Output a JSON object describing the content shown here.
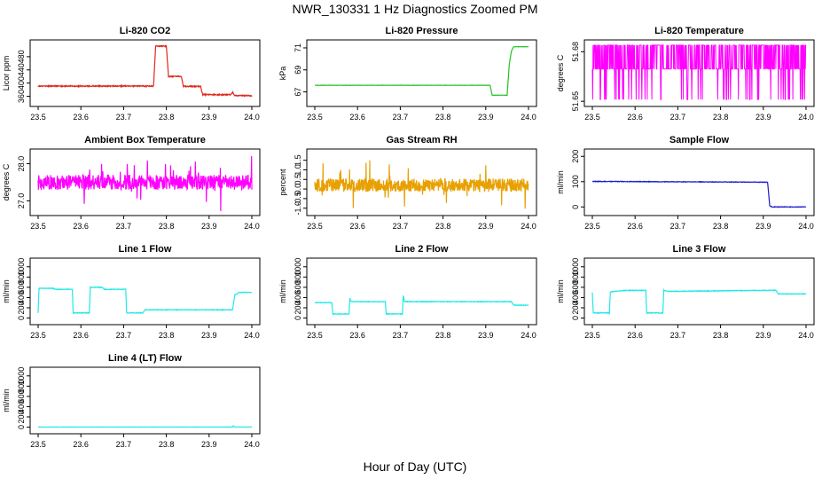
{
  "page": {
    "title": "NWR_130331  1 Hz Diagnostics Zoomed PM",
    "x_axis_title": "Hour of Day (UTC)"
  },
  "chart_data": [
    {
      "type": "line",
      "title": "Li-820 CO2",
      "ylabel": "Licor ppm",
      "color": "#e0281c",
      "xlim": [
        23.5,
        24.0
      ],
      "ylim": [
        340,
        520
      ],
      "xticks": [
        "23.5",
        "23.6",
        "23.7",
        "23.8",
        "23.9",
        "24.0"
      ],
      "yticks": [
        360,
        400,
        440,
        480
      ],
      "noise": 1.5,
      "spike_chance": 0,
      "points": [
        [
          23.5,
          391
        ],
        [
          23.77,
          391
        ],
        [
          23.775,
          512
        ],
        [
          23.8,
          512
        ],
        [
          23.805,
          420
        ],
        [
          23.835,
          420
        ],
        [
          23.84,
          390
        ],
        [
          23.88,
          390
        ],
        [
          23.885,
          365
        ],
        [
          23.95,
          365
        ],
        [
          23.955,
          372
        ],
        [
          23.96,
          362
        ],
        [
          24.0,
          362
        ]
      ]
    },
    {
      "type": "line",
      "title": "Li-820 Pressure",
      "ylabel": "kPa",
      "color": "#22c022",
      "xlim": [
        23.5,
        24.0
      ],
      "ylim": [
        66.0,
        71.4
      ],
      "xticks": [
        "23.5",
        "23.6",
        "23.7",
        "23.8",
        "23.9",
        "24.0"
      ],
      "yticks": [
        67,
        69,
        71
      ],
      "noise": 0.01,
      "spike_chance": 0,
      "points": [
        [
          23.5,
          67.6
        ],
        [
          23.91,
          67.6
        ],
        [
          23.915,
          66.7
        ],
        [
          23.95,
          66.7
        ],
        [
          23.955,
          69.5
        ],
        [
          23.96,
          70.7
        ],
        [
          23.965,
          71.1
        ],
        [
          24.0,
          71.1
        ]
      ]
    },
    {
      "type": "line",
      "title": "Li-820 Temperature",
      "ylabel": "degrees C",
      "color": "#ff00ff",
      "xlim": [
        23.5,
        24.0
      ],
      "ylim": [
        51.649,
        51.685
      ],
      "xticks": [
        "23.5",
        "23.6",
        "23.7",
        "23.8",
        "23.9",
        "24.0"
      ],
      "yticks": [
        51.65,
        51.68
      ],
      "yticklabels": [
        "51.65",
        "51.68"
      ],
      "mode": "binary",
      "levels": [
        51.651,
        51.6695,
        51.684
      ],
      "points": [
        [
          23.5,
          51.6695
        ],
        [
          24.0,
          51.6695
        ]
      ]
    },
    {
      "type": "line",
      "title": "Ambient Box Temperature",
      "ylabel": "degrees C",
      "color": "#ff00ff",
      "xlim": [
        23.5,
        24.0
      ],
      "ylim": [
        26.7,
        28.3
      ],
      "xticks": [
        "23.5",
        "23.6",
        "23.7",
        "23.8",
        "23.9",
        "24.0"
      ],
      "yticks": [
        27.0,
        28.0
      ],
      "yticklabels": [
        "27.0",
        "28.0"
      ],
      "noise": 0.2,
      "spike_chance": 0.06,
      "points": [
        [
          23.5,
          27.5
        ],
        [
          24.0,
          27.5
        ]
      ]
    },
    {
      "type": "line",
      "title": "Gas Stream RH",
      "ylabel": "percent",
      "color": "#e8a000",
      "xlim": [
        23.5,
        24.0
      ],
      "ylim": [
        -1.2,
        1.9
      ],
      "xticks": [
        "23.5",
        "23.6",
        "23.7",
        "23.8",
        "23.9",
        "24.0"
      ],
      "yticks": [
        -1.0,
        -0.5,
        0.0,
        0.5,
        1.0,
        1.5
      ],
      "yticklabels": [
        "-1.0",
        "-0.5",
        "0.0",
        "0.5",
        "1.0",
        "1.5"
      ],
      "noise": 0.35,
      "spike_chance": 0.05,
      "points": [
        [
          23.5,
          0.2
        ],
        [
          24.0,
          0.2
        ]
      ]
    },
    {
      "type": "line",
      "title": "Sample Flow",
      "ylabel": "ml/min",
      "color": "#1a1acd",
      "xlim": [
        23.5,
        24.0
      ],
      "ylim": [
        -20,
        215
      ],
      "xticks": [
        "23.5",
        "23.6",
        "23.7",
        "23.8",
        "23.9",
        "24.0"
      ],
      "yticks": [
        0,
        100,
        200
      ],
      "noise": 1,
      "spike_chance": 0,
      "points": [
        [
          23.5,
          101
        ],
        [
          23.9,
          98
        ],
        [
          23.91,
          98
        ],
        [
          23.915,
          5
        ],
        [
          23.92,
          0
        ],
        [
          24.0,
          0
        ]
      ]
    },
    {
      "type": "line",
      "title": "Line 1 Flow",
      "ylabel": "ml/min",
      "color": "#22e8e8",
      "xlim": [
        23.5,
        24.0
      ],
      "ylim": [
        -60,
        1100
      ],
      "xticks": [
        "23.5",
        "23.6",
        "23.7",
        "23.8",
        "23.9",
        "24.0"
      ],
      "yticks": [
        0,
        200,
        400,
        600,
        800,
        1000
      ],
      "noise": 6,
      "spike_chance": 0,
      "points": [
        [
          23.5,
          100
        ],
        [
          23.502,
          580
        ],
        [
          23.535,
          580
        ],
        [
          23.54,
          560
        ],
        [
          23.58,
          560
        ],
        [
          23.582,
          100
        ],
        [
          23.62,
          100
        ],
        [
          23.622,
          600
        ],
        [
          23.65,
          600
        ],
        [
          23.655,
          560
        ],
        [
          23.705,
          560
        ],
        [
          23.707,
          100
        ],
        [
          23.745,
          100
        ],
        [
          23.75,
          160
        ],
        [
          23.955,
          160
        ],
        [
          23.96,
          450
        ],
        [
          23.965,
          470
        ],
        [
          23.97,
          500
        ],
        [
          24.0,
          500
        ]
      ]
    },
    {
      "type": "line",
      "title": "Line 2 Flow",
      "ylabel": "ml/min",
      "color": "#22e8e8",
      "xlim": [
        23.5,
        24.0
      ],
      "ylim": [
        -60,
        1100
      ],
      "xticks": [
        "23.5",
        "23.6",
        "23.7",
        "23.8",
        "23.9",
        "24.0"
      ],
      "yticks": [
        0,
        200,
        400,
        600,
        800,
        1000
      ],
      "noise": 6,
      "spike_chance": 0,
      "points": [
        [
          23.5,
          300
        ],
        [
          23.54,
          300
        ],
        [
          23.542,
          80
        ],
        [
          23.58,
          80
        ],
        [
          23.582,
          390
        ],
        [
          23.585,
          320
        ],
        [
          23.665,
          320
        ],
        [
          23.667,
          80
        ],
        [
          23.705,
          80
        ],
        [
          23.707,
          440
        ],
        [
          23.71,
          320
        ],
        [
          23.96,
          320
        ],
        [
          23.965,
          250
        ],
        [
          24.0,
          250
        ]
      ]
    },
    {
      "type": "line",
      "title": "Line 3 Flow",
      "ylabel": "ml/min",
      "color": "#22e8e8",
      "xlim": [
        23.5,
        24.0
      ],
      "ylim": [
        -60,
        1100
      ],
      "xticks": [
        "23.5",
        "23.6",
        "23.7",
        "23.8",
        "23.9",
        "24.0"
      ],
      "yticks": [
        0,
        200,
        400,
        600,
        800,
        1000
      ],
      "noise": 6,
      "spike_chance": 0,
      "points": [
        [
          23.5,
          500
        ],
        [
          23.502,
          100
        ],
        [
          23.54,
          100
        ],
        [
          23.542,
          510
        ],
        [
          23.58,
          540
        ],
        [
          23.625,
          540
        ],
        [
          23.627,
          100
        ],
        [
          23.665,
          100
        ],
        [
          23.667,
          540
        ],
        [
          23.68,
          520
        ],
        [
          23.9,
          540
        ],
        [
          23.93,
          540
        ],
        [
          23.935,
          470
        ],
        [
          24.0,
          470
        ]
      ]
    },
    {
      "type": "line",
      "title": "Line 4 (LT) Flow",
      "ylabel": "ml/min",
      "color": "#22e8e8",
      "xlim": [
        23.5,
        24.0
      ],
      "ylim": [
        -60,
        1100
      ],
      "xticks": [
        "23.5",
        "23.6",
        "23.7",
        "23.8",
        "23.9",
        "24.0"
      ],
      "yticks": [
        0,
        200,
        400,
        600,
        800,
        1000
      ],
      "noise": 1,
      "spike_chance": 0,
      "points": [
        [
          23.5,
          3
        ],
        [
          23.955,
          3
        ],
        [
          23.957,
          30
        ],
        [
          23.959,
          3
        ],
        [
          24.0,
          3
        ]
      ]
    }
  ]
}
